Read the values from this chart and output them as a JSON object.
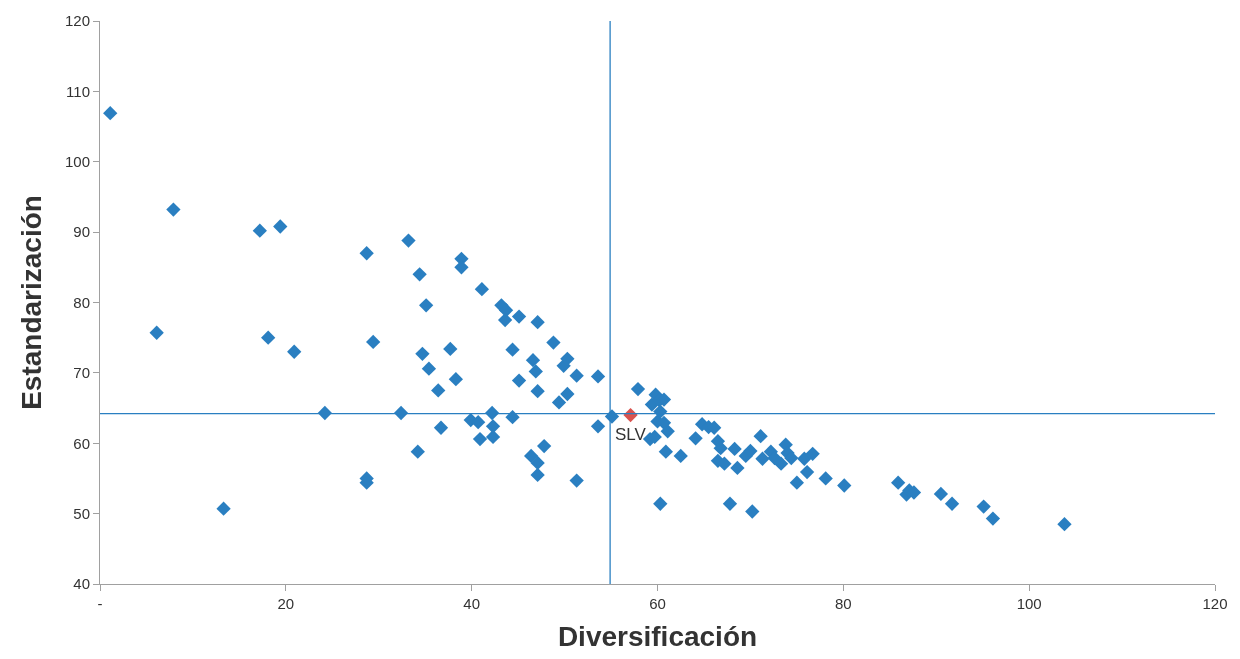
{
  "chart_data": {
    "type": "scatter",
    "xlabel": "Diversificación",
    "ylabel": "Estandarización",
    "xlim": [
      0,
      120
    ],
    "xticks": [
      {
        "value": 0,
        "label": "-"
      },
      20,
      40,
      60,
      80,
      100,
      120
    ],
    "ylim": [
      40,
      120
    ],
    "yticks": [
      40,
      50,
      60,
      70,
      80,
      90,
      100,
      110,
      120
    ],
    "marker": "diamond",
    "series": [
      {
        "color": "#2a7fc1",
        "x": [
          1.1,
          7.9,
          6.1,
          17.2,
          19.4,
          18.1,
          20.9,
          13.3,
          24.2,
          28.7,
          28.7,
          28.7,
          29.4,
          32.4,
          33.2,
          34.4,
          35.1,
          34.7,
          34.2,
          35.4,
          36.4,
          36.7,
          37.7,
          38.3,
          38.9,
          38.9,
          41.1,
          39.9,
          40.7,
          40.9,
          42.2,
          42.3,
          42.3,
          43.2,
          43.7,
          43.6,
          45.1,
          44.4,
          44.4,
          45.1,
          47.1,
          46.4,
          46.6,
          46.9,
          47.1,
          47.1,
          47.1,
          47.8,
          48.8,
          49.4,
          49.9,
          50.3,
          50.3,
          51.3,
          51.3,
          53.6,
          53.6,
          55.1,
          57.9,
          59.4,
          59.8,
          60.2,
          60.7,
          60.0,
          60.3,
          60.7,
          59.2,
          59.7,
          61.1,
          60.9,
          60.3,
          62.5,
          64.1,
          64.8,
          65.5,
          66.1,
          66.5,
          66.8,
          66.5,
          67.2,
          67.8,
          68.3,
          68.6,
          69.5,
          70.0,
          70.2,
          71.1,
          71.3,
          72.2,
          72.6,
          73.3,
          73.8,
          74.0,
          74.4,
          75.0,
          75.8,
          76.1,
          76.7,
          78.1,
          80.1,
          85.9,
          86.8,
          87.1,
          87.6,
          90.5,
          91.7,
          95.1,
          96.1,
          103.8
        ],
        "values": [
          106.9,
          93.2,
          75.7,
          90.2,
          90.8,
          75.0,
          73.0,
          50.7,
          64.3,
          87.0,
          55.0,
          54.4,
          74.4,
          64.3,
          88.8,
          84.0,
          79.6,
          72.7,
          58.8,
          70.6,
          67.5,
          62.2,
          73.4,
          69.1,
          86.2,
          85.0,
          81.9,
          63.3,
          63.0,
          60.6,
          64.3,
          62.4,
          60.9,
          79.6,
          78.9,
          77.5,
          78.0,
          63.7,
          73.3,
          68.9,
          77.2,
          58.2,
          71.8,
          70.2,
          67.4,
          57.2,
          55.5,
          59.6,
          74.3,
          65.8,
          71.0,
          72.0,
          67.0,
          69.6,
          54.7,
          69.5,
          62.4,
          63.8,
          67.7,
          65.5,
          66.9,
          66.1,
          66.2,
          63.1,
          64.5,
          62.9,
          60.6,
          60.9,
          61.7,
          58.8,
          51.4,
          58.2,
          60.7,
          62.7,
          62.3,
          62.2,
          60.3,
          59.3,
          57.5,
          57.1,
          51.4,
          59.2,
          56.5,
          58.2,
          58.9,
          50.3,
          61.0,
          57.8,
          58.8,
          57.9,
          57.1,
          59.8,
          58.6,
          57.9,
          54.4,
          57.8,
          55.9,
          58.5,
          55.0,
          54.0,
          54.4,
          52.7,
          53.3,
          53.0,
          52.8,
          51.4,
          51.0,
          49.3,
          48.5
        ]
      },
      {
        "color": "#d9534f",
        "x": [
          57.1
        ],
        "values": [
          64.0
        ]
      }
    ],
    "ref_lines": [
      {
        "axis": "x",
        "value": 54.9,
        "color": "#2a7fc1"
      },
      {
        "axis": "y",
        "value": 64.2,
        "color": "#2a7fc1"
      }
    ],
    "annotations": [
      {
        "text": "SLV",
        "x": 57.1,
        "y": 64.0
      }
    ]
  }
}
